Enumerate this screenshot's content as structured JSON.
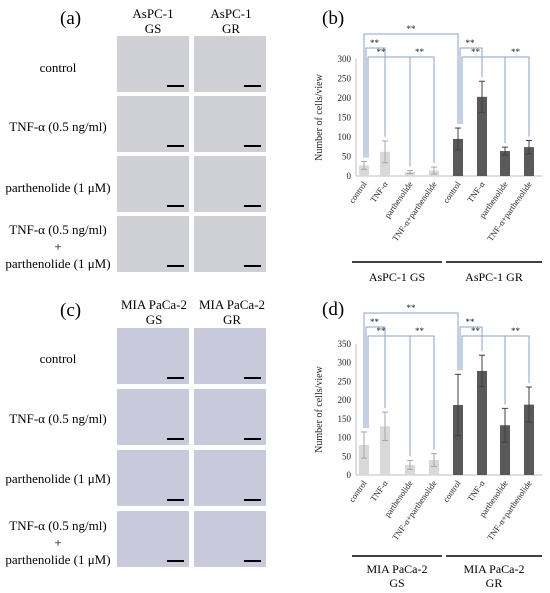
{
  "panels": {
    "a": {
      "letter": "(a)",
      "col_headers": [
        [
          "AsPC-1",
          "GS"
        ],
        [
          "AsPC-1",
          "GR"
        ]
      ],
      "row_labels": [
        [
          "control"
        ],
        [
          "TNF-α (0.5 ng/ml)"
        ],
        [
          "parthenolide (1 μM)"
        ],
        [
          "TNF-α (0.5 ng/ml)",
          "+",
          "parthenolide (1 μM)"
        ]
      ]
    },
    "c": {
      "letter": "(c)",
      "col_headers": [
        [
          "MIA PaCa-2",
          "GS"
        ],
        [
          "MIA PaCa-2",
          "GR"
        ]
      ],
      "row_labels": [
        [
          "control"
        ],
        [
          "TNF-α (0.5 ng/ml)"
        ],
        [
          "parthenolide (1 μM)"
        ],
        [
          "TNF-α (0.5 ng/ml)",
          "+",
          "parthenolide (1 μM)"
        ]
      ]
    }
  },
  "chart_data": [
    {
      "panel": "(b)",
      "type": "bar",
      "ylabel": "Number of cells/view",
      "ylim": [
        0,
        300
      ],
      "yticks": [
        0,
        50,
        100,
        150,
        200,
        250,
        300
      ],
      "categories": [
        "control",
        "TNF-α",
        "parthenolide",
        "TNF-α+parthenolide",
        "control",
        "TNF-α",
        "parthenolide",
        "TNF-α+parthenolide"
      ],
      "values": [
        27,
        62,
        10,
        14,
        95,
        203,
        64,
        74
      ],
      "errors": [
        10,
        28,
        4,
        9,
        28,
        40,
        10,
        17
      ],
      "colors": [
        "#d9d9d9",
        "#d9d9d9",
        "#d9d9d9",
        "#d9d9d9",
        "#595959",
        "#595959",
        "#595959",
        "#595959"
      ],
      "groups": [
        {
          "label": "AsPC-1 GS",
          "lines": [
            "AsPC-1 GS"
          ]
        },
        {
          "label": "AsPC-1 GR",
          "lines": [
            "AsPC-1 GR"
          ]
        }
      ],
      "significance": [
        "**",
        "**",
        "**",
        "**",
        "**",
        "**",
        "**"
      ]
    },
    {
      "panel": "(d)",
      "type": "bar",
      "ylabel": "Number of cells/view",
      "ylim": [
        0,
        350
      ],
      "yticks": [
        0,
        50,
        100,
        150,
        200,
        250,
        300,
        350
      ],
      "categories": [
        "control",
        "TNF-α",
        "parthenolide",
        "TNF-α+parthenolide",
        "control",
        "TNF-α",
        "parthenolide",
        "TNF-α+parthenolide"
      ],
      "values": [
        80,
        130,
        27,
        40,
        187,
        278,
        133,
        188
      ],
      "errors": [
        35,
        38,
        12,
        17,
        82,
        42,
        45,
        47
      ],
      "colors": [
        "#d9d9d9",
        "#d9d9d9",
        "#d9d9d9",
        "#d9d9d9",
        "#595959",
        "#595959",
        "#595959",
        "#595959"
      ],
      "groups": [
        {
          "label": "MIA PaCa-2 GS",
          "lines": [
            "MIA PaCa-2",
            "GS"
          ]
        },
        {
          "label": "MIA PaCa-2 GR",
          "lines": [
            "MIA PaCa-2",
            "GR"
          ]
        }
      ],
      "significance": [
        "**",
        "**",
        "**",
        "**",
        "**",
        "**",
        "**"
      ]
    }
  ]
}
